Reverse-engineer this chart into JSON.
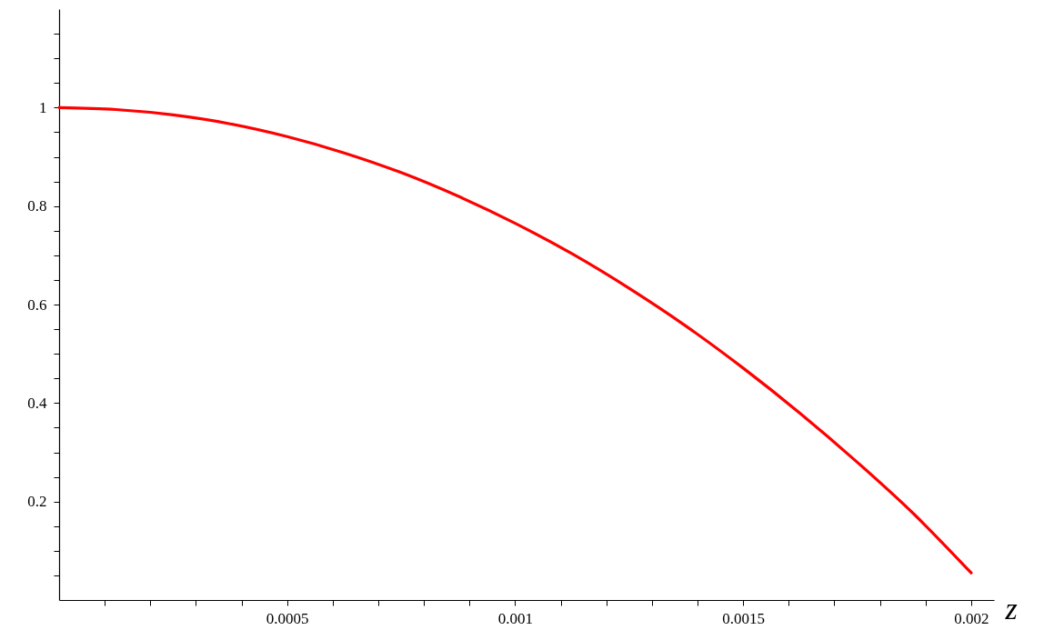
{
  "chart_data": {
    "type": "line",
    "xlabel": "z",
    "x": [
      0,
      0.000125,
      0.00025,
      0.000375,
      0.0005,
      0.000625,
      0.00075,
      0.000875,
      0.001,
      0.001125,
      0.00125,
      0.001375,
      0.0015,
      0.001625,
      0.00175,
      0.001875,
      0.002
    ],
    "series": [
      {
        "color": "#ff0000",
        "values": [
          1,
          0.996,
          0.985,
          0.967,
          0.941,
          0.908,
          0.868,
          0.82,
          0.765,
          0.703,
          0.633,
          0.556,
          0.471,
          0.379,
          0.28,
          0.174,
          0.055
        ]
      }
    ],
    "xlim": [
      0,
      0.00205
    ],
    "xticks": [
      {
        "value": 0.0001,
        "label": null
      },
      {
        "value": 0.0002,
        "label": null
      },
      {
        "value": 0.0003,
        "label": null
      },
      {
        "value": 0.0004,
        "label": null
      },
      0.0005,
      {
        "value": 0.0006,
        "label": null
      },
      {
        "value": 0.0007,
        "label": null
      },
      {
        "value": 0.0008,
        "label": null
      },
      {
        "value": 0.0009,
        "label": null
      },
      0.001,
      {
        "value": 0.0011,
        "label": null
      },
      {
        "value": 0.0012,
        "label": null
      },
      {
        "value": 0.0013,
        "label": null
      },
      {
        "value": 0.0014,
        "label": null
      },
      0.0015,
      {
        "value": 0.0016,
        "label": null
      },
      {
        "value": 0.0017,
        "label": null
      },
      {
        "value": 0.0018,
        "label": null
      },
      {
        "value": 0.0019,
        "label": null
      },
      0.002
    ],
    "ylim": [
      0,
      1.2
    ],
    "yticks": [
      {
        "value": 0.05,
        "label": null
      },
      {
        "value": 0.1,
        "label": null
      },
      {
        "value": 0.15,
        "label": null
      },
      0.2,
      {
        "value": 0.25,
        "label": null
      },
      {
        "value": 0.3,
        "label": null
      },
      {
        "value": 0.35,
        "label": null
      },
      0.4,
      {
        "value": 0.45,
        "label": null
      },
      {
        "value": 0.5,
        "label": null
      },
      {
        "value": 0.55,
        "label": null
      },
      0.6,
      {
        "value": 0.65,
        "label": null
      },
      {
        "value": 0.7,
        "label": null
      },
      {
        "value": 0.75,
        "label": null
      },
      0.8,
      {
        "value": 0.85,
        "label": null
      },
      {
        "value": 0.9,
        "label": null
      },
      {
        "value": 0.95,
        "label": null
      },
      1,
      {
        "value": 1.05,
        "label": null
      },
      {
        "value": 1.1,
        "label": null
      },
      {
        "value": 1.15,
        "label": null
      }
    ],
    "grid": false
  }
}
